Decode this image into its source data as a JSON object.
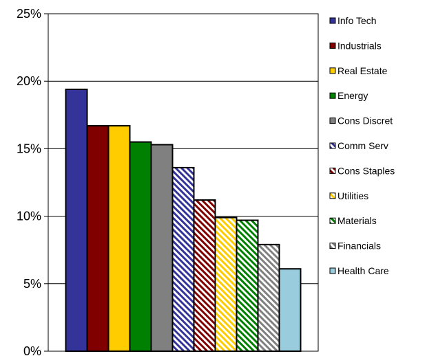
{
  "chart_data": {
    "type": "bar",
    "title": "",
    "xlabel": "",
    "ylabel": "",
    "ylim": [
      0,
      25
    ],
    "y_ticks": [
      0,
      5,
      10,
      15,
      20,
      25
    ],
    "y_tick_format": "percent",
    "grid": true,
    "legend_position": "right",
    "categories": [
      "Info Tech",
      "Industrials",
      "Real Estate",
      "Energy",
      "Cons Discret",
      "Comm Serv",
      "Cons Staples",
      "Utilities",
      "Materials",
      "Financials",
      "Health Care"
    ],
    "values": [
      19.4,
      16.7,
      16.7,
      15.5,
      15.3,
      13.6,
      11.2,
      9.9,
      9.7,
      7.9,
      6.1
    ],
    "colors": [
      "#333399",
      "#800000",
      "#ffcc00",
      "#008000",
      "#808080",
      "#333399",
      "#800000",
      "#ffcc00",
      "#008000",
      "#808080",
      "#99ccdd"
    ],
    "patterns": [
      "solid",
      "solid",
      "solid",
      "solid",
      "solid",
      "hatch",
      "hatch",
      "hatch",
      "hatch",
      "hatch",
      "solid"
    ]
  }
}
